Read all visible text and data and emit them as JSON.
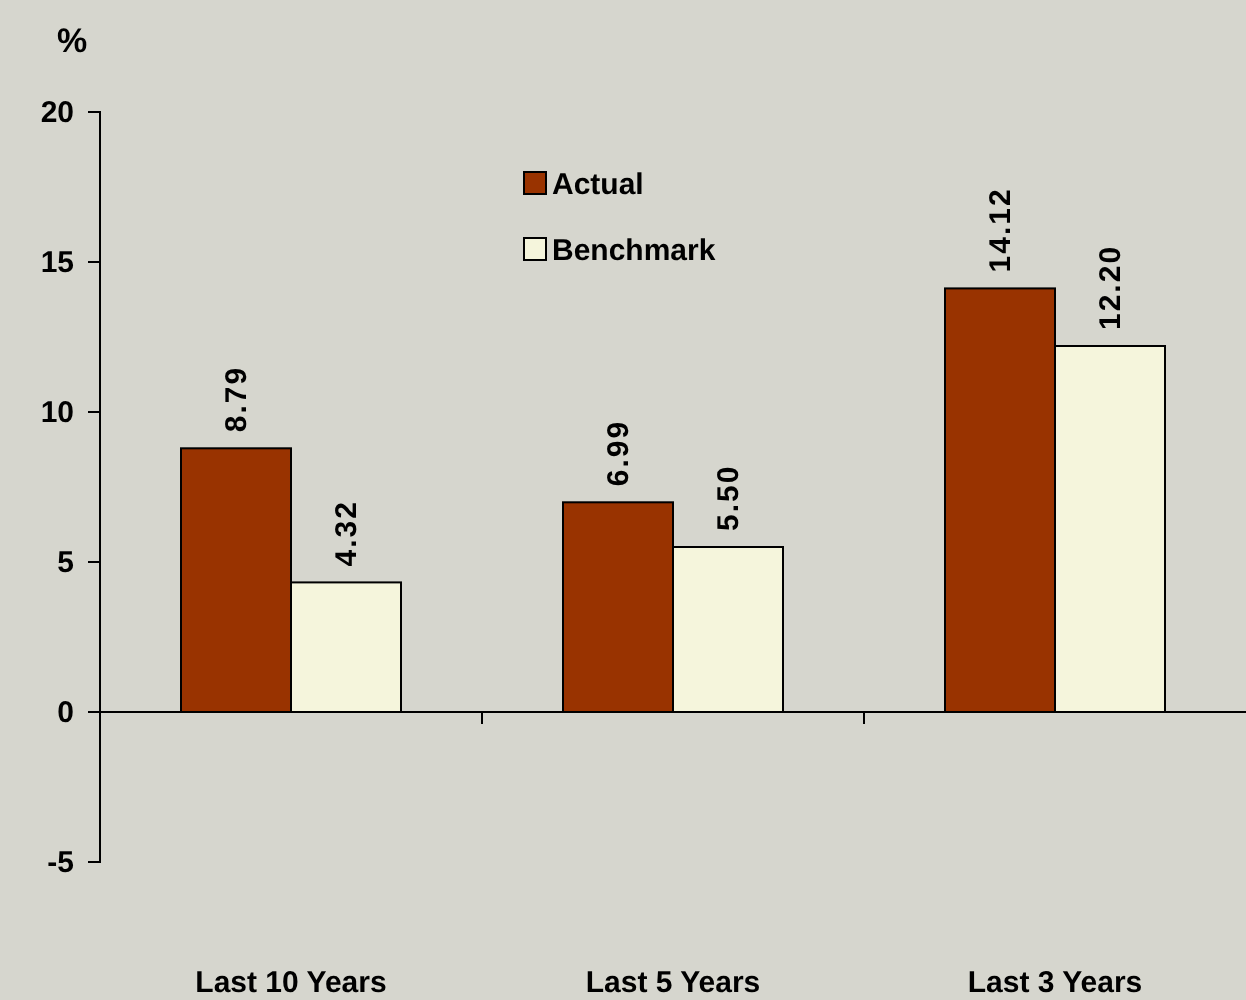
{
  "chart_data": {
    "type": "bar",
    "ylabel": "%",
    "categories": [
      "Last 10 Years",
      "Last 5 Years",
      "Last 3 Years"
    ],
    "series": [
      {
        "name": "Actual",
        "color": "#993300",
        "values": [
          8.79,
          6.99,
          14.12
        ],
        "value_labels": [
          "8.79",
          "6.99",
          "14.12"
        ]
      },
      {
        "name": "Benchmark",
        "color": "#f5f5dc",
        "values": [
          4.32,
          5.5,
          12.2
        ],
        "value_labels": [
          "4.32",
          "5.50",
          "12.20"
        ]
      }
    ],
    "ylim": [
      -5,
      20
    ],
    "yticks": [
      -5,
      0,
      5,
      10,
      15,
      20
    ],
    "legend": "top"
  }
}
